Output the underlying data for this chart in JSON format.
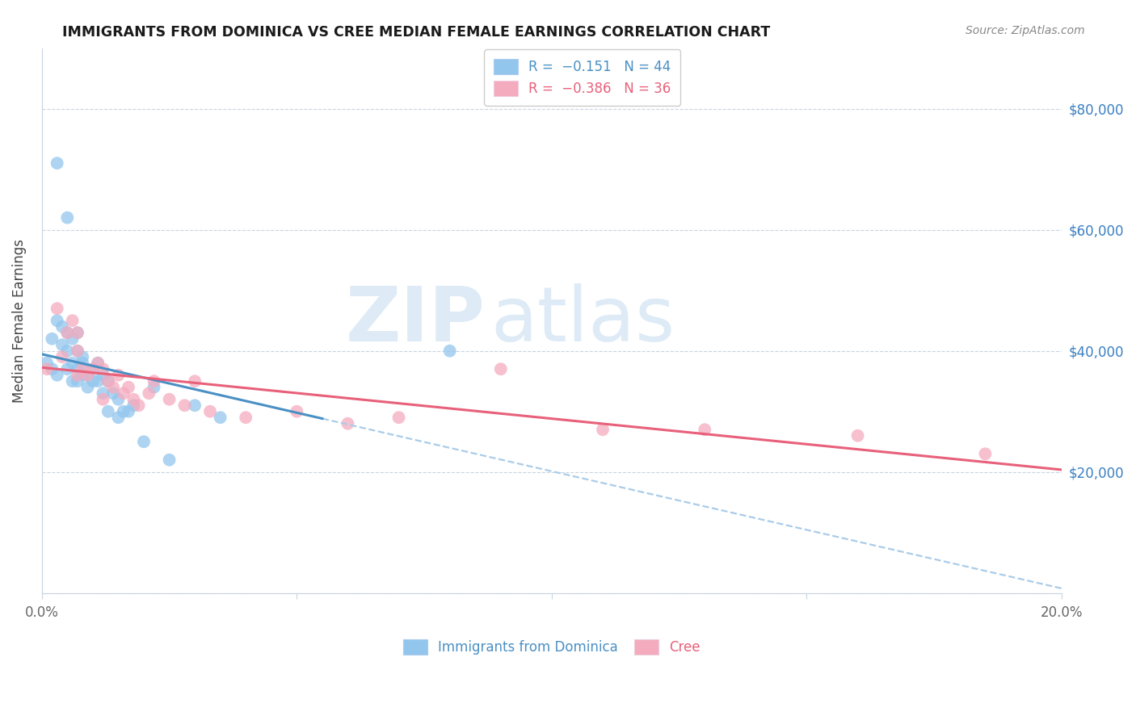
{
  "title": "IMMIGRANTS FROM DOMINICA VS CREE MEDIAN FEMALE EARNINGS CORRELATION CHART",
  "source": "Source: ZipAtlas.com",
  "ylabel": "Median Female Earnings",
  "watermark_zip": "ZIP",
  "watermark_atlas": "atlas",
  "xlim": [
    0.0,
    0.2
  ],
  "ylim": [
    0,
    90000
  ],
  "legend1_R": "-0.151",
  "legend1_N": "44",
  "legend2_R": "-0.386",
  "legend2_N": "36",
  "blue_scatter_color": "#93C6ED",
  "pink_scatter_color": "#F5ABBE",
  "blue_line_color": "#4A90C4",
  "pink_line_color": "#E8607A",
  "dash_line_color": "#AACCE8",
  "dominica_x": [
    0.001,
    0.002,
    0.002,
    0.003,
    0.003,
    0.004,
    0.004,
    0.005,
    0.005,
    0.005,
    0.006,
    0.006,
    0.006,
    0.007,
    0.007,
    0.007,
    0.007,
    0.008,
    0.008,
    0.008,
    0.009,
    0.009,
    0.01,
    0.01,
    0.011,
    0.011,
    0.012,
    0.012,
    0.013,
    0.013,
    0.014,
    0.015,
    0.015,
    0.016,
    0.017,
    0.018,
    0.02,
    0.022,
    0.025,
    0.03,
    0.035,
    0.08,
    0.003,
    0.005
  ],
  "dominica_y": [
    38000,
    42000,
    37000,
    45000,
    36000,
    44000,
    41000,
    43000,
    40000,
    37000,
    38000,
    35000,
    42000,
    40000,
    37000,
    35000,
    43000,
    39000,
    36000,
    38000,
    36000,
    34000,
    37000,
    35000,
    38000,
    35000,
    36000,
    33000,
    35000,
    30000,
    33000,
    32000,
    29000,
    30000,
    30000,
    31000,
    25000,
    34000,
    22000,
    31000,
    29000,
    40000,
    71000,
    62000
  ],
  "cree_x": [
    0.001,
    0.003,
    0.004,
    0.005,
    0.006,
    0.007,
    0.007,
    0.008,
    0.009,
    0.01,
    0.011,
    0.012,
    0.013,
    0.014,
    0.015,
    0.016,
    0.017,
    0.018,
    0.019,
    0.021,
    0.022,
    0.025,
    0.028,
    0.03,
    0.033,
    0.04,
    0.05,
    0.06,
    0.07,
    0.09,
    0.11,
    0.13,
    0.16,
    0.185,
    0.007,
    0.012
  ],
  "cree_y": [
    37000,
    47000,
    39000,
    43000,
    45000,
    40000,
    36000,
    37000,
    36000,
    37000,
    38000,
    37000,
    35000,
    34000,
    36000,
    33000,
    34000,
    32000,
    31000,
    33000,
    35000,
    32000,
    31000,
    35000,
    30000,
    29000,
    30000,
    28000,
    29000,
    37000,
    27000,
    27000,
    26000,
    23000,
    43000,
    32000
  ]
}
